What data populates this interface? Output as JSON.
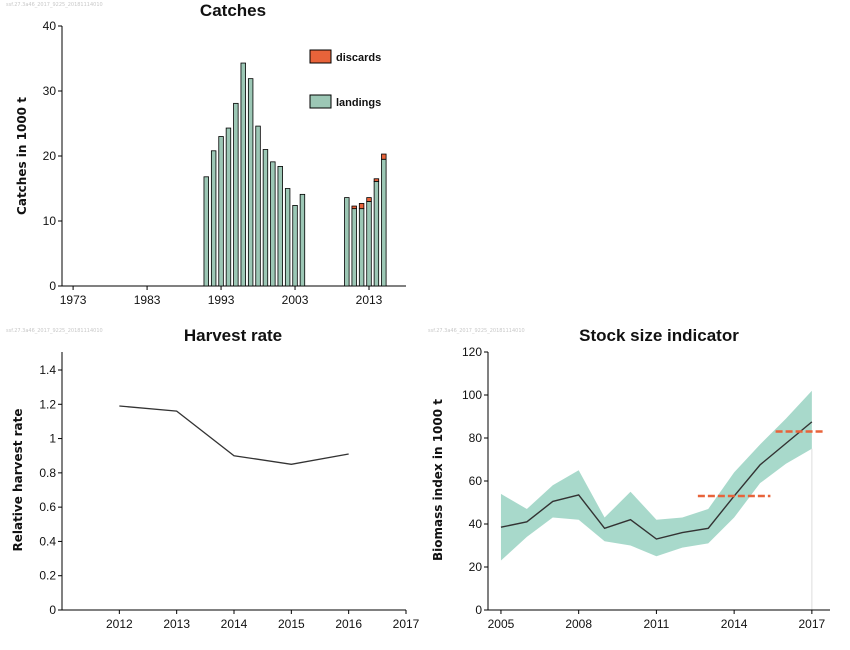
{
  "watermarks": {
    "catches": "ssf.27.3a46_2017_9225_20181114010",
    "harvest": "ssf.27.3a46_2017_9225_20181114010",
    "stock": "ssf.27.3a46_2017_9225_20181114010"
  },
  "colors": {
    "landings": "#9cc7b5",
    "discards": "#e8633a",
    "band": "#a8d9cb",
    "line": "#333333",
    "trigger": "#e8633a"
  },
  "chart_data": [
    {
      "id": "catches",
      "type": "bar",
      "title": "Catches",
      "ylabel": "Catches in 1000 t",
      "xlim": [
        1971.5,
        2018
      ],
      "ylim": [
        0,
        40
      ],
      "xticks": [
        "1973",
        "1983",
        "1993",
        "2003",
        "2013"
      ],
      "yticks": [
        "0",
        "10",
        "20",
        "30",
        "40"
      ],
      "legend": [
        "discards",
        "landings"
      ],
      "legend_position": "top-right",
      "x": [
        1991,
        1992,
        1993,
        1994,
        1995,
        1996,
        1997,
        1998,
        1999,
        2000,
        2001,
        2002,
        2003,
        2004,
        2010,
        2011,
        2012,
        2013,
        2014,
        2015
      ],
      "series": [
        {
          "name": "landings",
          "values": [
            16.8,
            20.8,
            23.0,
            24.3,
            28.1,
            34.3,
            31.9,
            24.6,
            21.0,
            19.1,
            18.4,
            15.0,
            12.4,
            14.1,
            13.6,
            11.9,
            11.9,
            13.0,
            16.1,
            19.5
          ]
        },
        {
          "name": "discards",
          "values": [
            0,
            0,
            0,
            0,
            0,
            0,
            0,
            0,
            0,
            0,
            0,
            0,
            0,
            0,
            0,
            0.4,
            0.8,
            0.6,
            0.4,
            0.8
          ]
        }
      ]
    },
    {
      "id": "harvest",
      "type": "line",
      "title": "Harvest rate",
      "ylabel": "Relative harvest rate",
      "xlim": [
        2011,
        2017
      ],
      "ylim": [
        0,
        1.4
      ],
      "xticks": [
        "2012",
        "2013",
        "2014",
        "2015",
        "2016",
        "2017"
      ],
      "yticks": [
        "0",
        "0.2",
        "0.4",
        "0.6",
        "0.8",
        "1",
        "1.2",
        "1.4"
      ],
      "x": [
        2012,
        2013,
        2014,
        2015,
        2016
      ],
      "y": [
        1.19,
        1.16,
        0.9,
        0.85,
        0.91
      ]
    },
    {
      "id": "stock",
      "type": "line",
      "title": "Stock size indicator",
      "ylabel": "Biomass index in 1000 t",
      "xlim": [
        2004.5,
        2017.7
      ],
      "ylim": [
        0,
        120
      ],
      "xticks": [
        "2005",
        "2008",
        "2011",
        "2014",
        "2017"
      ],
      "yticks": [
        "0",
        "20",
        "40",
        "60",
        "80",
        "100",
        "120"
      ],
      "x": [
        2005,
        2006,
        2007,
        2008,
        2009,
        2010,
        2011,
        2012,
        2013,
        2014,
        2015,
        2016,
        2017
      ],
      "y": [
        38.5,
        41,
        50.5,
        53.5,
        38,
        42,
        33,
        36,
        38,
        53,
        67.5,
        77.5,
        87.5
      ],
      "upper": [
        54,
        47,
        58,
        65,
        43,
        55,
        42,
        43,
        47,
        64,
        77,
        89,
        102
      ],
      "lower": [
        23,
        34,
        43,
        42,
        32,
        30,
        25,
        29,
        31,
        43,
        59,
        68,
        75
      ],
      "triggers": [
        {
          "x_from": 2012.6,
          "x_to": 2015.4,
          "y": 53
        },
        {
          "x_from": 2015.6,
          "x_to": 2017.5,
          "y": 83
        }
      ]
    }
  ]
}
